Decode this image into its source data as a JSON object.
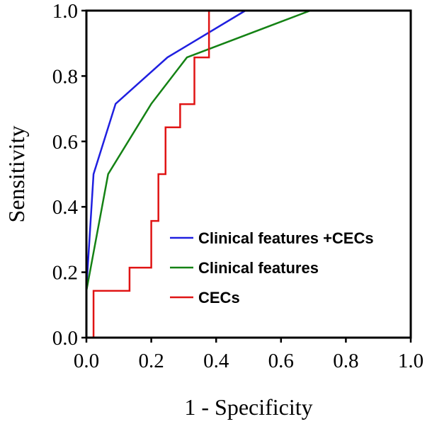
{
  "chart_data": {
    "type": "line",
    "title": "",
    "xlabel": "1 - Specificity",
    "ylabel": "Sensitivity",
    "xlim": [
      0.0,
      1.0
    ],
    "ylim": [
      0.0,
      1.0
    ],
    "xticks": [
      "0.0",
      "0.2",
      "0.4",
      "0.6",
      "0.8",
      "1.0"
    ],
    "yticks": [
      "0.0",
      "0.2",
      "0.4",
      "0.6",
      "0.8",
      "1.0"
    ],
    "grid": false,
    "legend_position": "bottom-right",
    "series": [
      {
        "name": "Clinical features +CECs",
        "color": "#1f1fe0",
        "step": false,
        "x": [
          0.0,
          0.022,
          0.09,
          0.25,
          0.49
        ],
        "y": [
          0.15,
          0.5,
          0.715,
          0.857,
          1.0
        ]
      },
      {
        "name": "Clinical features",
        "color": "#148214",
        "step": false,
        "x": [
          0.0,
          0.067,
          0.2,
          0.31,
          0.69
        ],
        "y": [
          0.143,
          0.5,
          0.715,
          0.857,
          1.0
        ]
      },
      {
        "name": "CECs",
        "color": "#e01414",
        "step": true,
        "x": [
          0.022,
          0.022,
          0.133,
          0.133,
          0.2,
          0.2,
          0.222,
          0.222,
          0.244,
          0.244,
          0.289,
          0.289,
          0.333,
          0.333,
          0.378,
          0.378
        ],
        "y": [
          0.0,
          0.143,
          0.143,
          0.214,
          0.214,
          0.357,
          0.357,
          0.5,
          0.5,
          0.643,
          0.643,
          0.714,
          0.714,
          0.857,
          0.857,
          1.0
        ]
      }
    ]
  }
}
